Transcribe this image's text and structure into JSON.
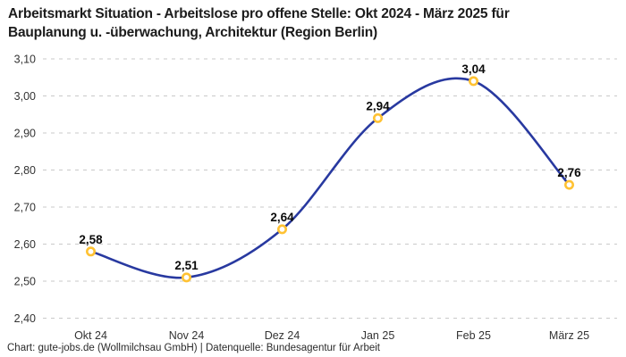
{
  "header": {
    "title_line1": "Arbeitsmarkt Situation - Arbeitslose pro offene Stelle: Okt 2024 - März 2025 für",
    "title_line2": "Bauplanung u. -überwachung, Architektur (Region Berlin)"
  },
  "footer": {
    "credit": "Chart: gute-jobs.de (Wollmilchsau GmbH) | Datenquelle: Bundesagentur für Arbeit"
  },
  "chart_data": {
    "type": "line",
    "title": "Arbeitsmarkt Situation - Arbeitslose pro offene Stelle: Okt 2024 - März 2025 für Bauplanung u. -überwachung, Architektur (Region Berlin)",
    "categories": [
      "Okt 24",
      "Nov 24",
      "Dez 24",
      "Jan 25",
      "Feb 25",
      "März 25"
    ],
    "values": [
      2.58,
      2.51,
      2.64,
      2.94,
      3.04,
      2.76
    ],
    "value_labels": [
      "2,58",
      "2,51",
      "2,64",
      "2,94",
      "3,04",
      "2,76"
    ],
    "series_name": "Arbeitslose pro offene Stelle",
    "ylim": [
      2.4,
      3.1
    ],
    "yticks": {
      "values": [
        3.1,
        3.0,
        2.9,
        2.8,
        2.7,
        2.6,
        2.5,
        2.4
      ],
      "labels": [
        "3,10",
        "3,00",
        "2,90",
        "2,80",
        "2,70",
        "2,60",
        "2,50",
        "2,40"
      ]
    },
    "xlabel": "",
    "ylabel": "",
    "legend": "none",
    "grid": "horizontal-dashed",
    "curve": "smooth",
    "colors": {
      "line": "#2839a0",
      "marker_ring": "#ffc233",
      "marker_fill": "#ffffff",
      "grid": "#c9c9c9",
      "tick_text": "#333333",
      "value_text": "#0a0a0a"
    }
  }
}
